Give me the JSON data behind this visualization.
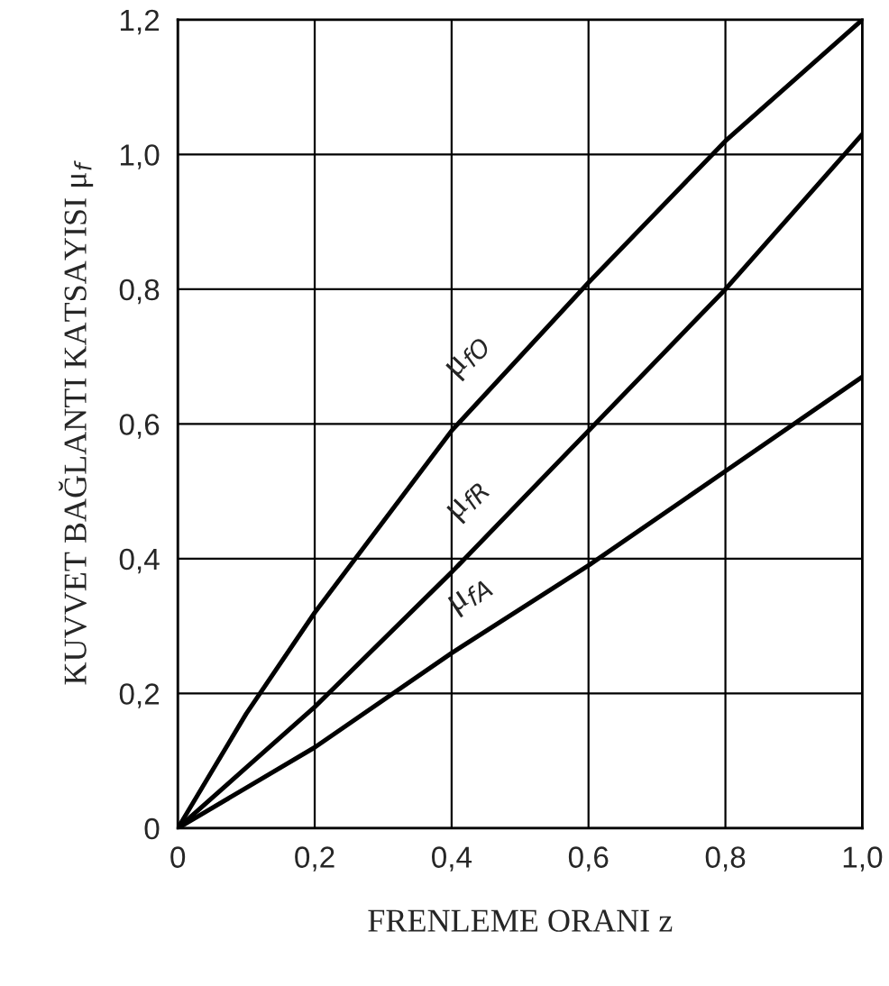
{
  "chart_data": {
    "type": "line",
    "xlabel": "FRENLEME ORANI z",
    "ylabel": "KUVVET BAĞLANTI KATSAYISI μ$_{f}$",
    "x": [
      0,
      0.1,
      0.2,
      0.4,
      0.6,
      0.8,
      1.0
    ],
    "series": [
      {
        "name": "μ$_{fO}$",
        "color": "#000000",
        "values": [
          0,
          0.17,
          0.32,
          0.59,
          0.81,
          1.02,
          1.2
        ]
      },
      {
        "name": "μ$_{fR}$",
        "color": "#000000",
        "values": [
          0,
          0.09,
          0.18,
          0.38,
          0.59,
          0.8,
          1.03
        ]
      },
      {
        "name": "μ$_{fA}$",
        "color": "#000000",
        "values": [
          0,
          0.06,
          0.12,
          0.26,
          0.39,
          0.53,
          0.67
        ]
      }
    ],
    "xlim": [
      0,
      1.0
    ],
    "ylim": [
      0,
      1.2
    ],
    "xticks": [
      0,
      {
        "value": 0.2,
        "label": "0,2"
      },
      {
        "value": 0.4,
        "label": "0,4"
      },
      {
        "value": 0.6,
        "label": "0,6"
      },
      {
        "value": 0.8,
        "label": "0,8"
      },
      {
        "value": 1.0,
        "label": "1,0"
      }
    ],
    "yticks": [
      0,
      {
        "value": 0.2,
        "label": "0,2"
      },
      {
        "value": 0.4,
        "label": "0,4"
      },
      {
        "value": 0.6,
        "label": "0,6"
      },
      {
        "value": 0.8,
        "label": "0,8"
      },
      {
        "value": 1.0,
        "label": "1,0"
      },
      {
        "value": 1.2,
        "label": "1,2"
      }
    ],
    "grid": true,
    "legend": false,
    "marker": "none",
    "line_style": "solid"
  }
}
